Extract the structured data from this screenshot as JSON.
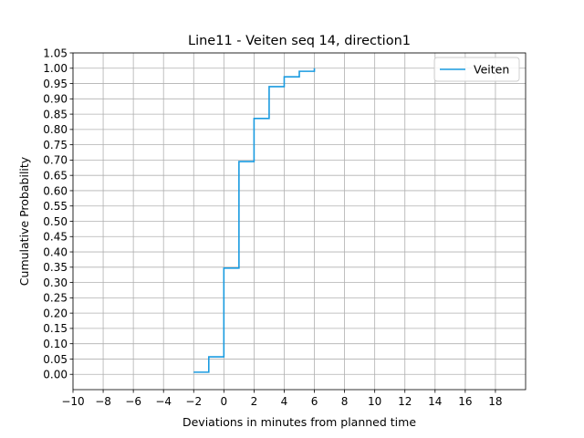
{
  "chart_data": {
    "type": "line",
    "step": "post",
    "title": "Line11 - Veiten seq 14, direction1",
    "xlabel": "Deviations in minutes from planned time",
    "ylabel": "Cumulative Probability",
    "xlim": [
      -10,
      20
    ],
    "ylim": [
      -0.05,
      1.05
    ],
    "xticks": [
      -10,
      -8,
      -6,
      -4,
      -2,
      0,
      2,
      4,
      6,
      8,
      10,
      12,
      14,
      16,
      18
    ],
    "xtick_labels": [
      "−10",
      "−8",
      "−6",
      "−4",
      "−2",
      "0",
      "2",
      "4",
      "6",
      "8",
      "10",
      "12",
      "14",
      "16",
      "18"
    ],
    "yticks": [
      0.0,
      0.05,
      0.1,
      0.15,
      0.2,
      0.25,
      0.3,
      0.35,
      0.4,
      0.45,
      0.5,
      0.55,
      0.6,
      0.65,
      0.7,
      0.75,
      0.8,
      0.85,
      0.9,
      0.95,
      1.0,
      1.05
    ],
    "ytick_labels": [
      "0.00",
      "0.05",
      "0.10",
      "0.15",
      "0.20",
      "0.25",
      "0.30",
      "0.35",
      "0.40",
      "0.45",
      "0.50",
      "0.55",
      "0.60",
      "0.65",
      "0.70",
      "0.75",
      "0.80",
      "0.85",
      "0.90",
      "0.95",
      "1.00",
      "1.05"
    ],
    "grid": true,
    "legend_position": "top-right",
    "series": [
      {
        "name": "Veiten",
        "color": "#1a9be0",
        "x": [
          -2,
          -1,
          0,
          1,
          2,
          3,
          4,
          5,
          6
        ],
        "y": [
          0.007,
          0.057,
          0.347,
          0.695,
          0.836,
          0.94,
          0.972,
          0.99,
          1.0
        ]
      }
    ]
  }
}
